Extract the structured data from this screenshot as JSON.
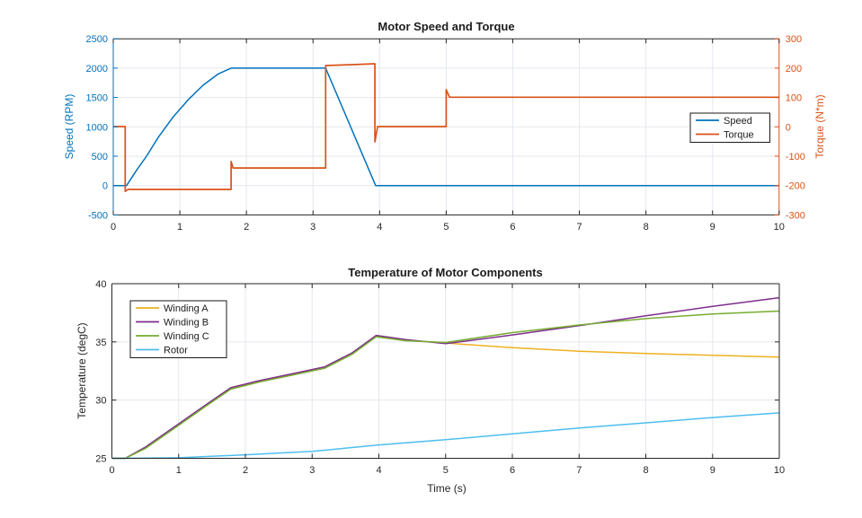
{
  "figure": {
    "background": "#ffffff"
  },
  "colors": {
    "axis_dark": "#262626",
    "grid": "#e4e7ee",
    "speed_blue": "#0072BD",
    "torque_orange": "#D95319",
    "winding_a_yellow": "#EDB120",
    "winding_b_purple": "#7E2F8E",
    "winding_c_green": "#77AC30",
    "rotor_cyan": "#4DBEEE",
    "legend_border": "#1a1a1a"
  },
  "chart_data": [
    {
      "type": "line",
      "title": "Motor Speed and Torque",
      "xlabel": "",
      "xlim": [
        0,
        10
      ],
      "xticks": [
        0,
        1,
        2,
        3,
        4,
        5,
        6,
        7,
        8,
        9,
        10
      ],
      "grid": true,
      "legend": {
        "position": "right-center",
        "entries": [
          "Speed",
          "Torque"
        ]
      },
      "left_axis": {
        "label": "Speed (RPM)",
        "color": "#0072BD",
        "lim": [
          -500,
          2500
        ],
        "ticks": [
          -500,
          0,
          500,
          1000,
          1500,
          2000,
          2500
        ]
      },
      "right_axis": {
        "label": "Torque (N*m)",
        "color": "#D95319",
        "lim": [
          -300,
          300
        ],
        "ticks": [
          -300,
          -200,
          -100,
          0,
          100,
          200,
          300
        ]
      },
      "series": [
        {
          "name": "Speed",
          "axis": "left",
          "color": "#0072BD",
          "points": [
            [
              0,
              0
            ],
            [
              0.2,
              0
            ],
            [
              0.35,
              260
            ],
            [
              0.5,
              500
            ],
            [
              0.675,
              820
            ],
            [
              0.9,
              1170
            ],
            [
              1.125,
              1460
            ],
            [
              1.35,
              1710
            ],
            [
              1.575,
              1900
            ],
            [
              1.77,
              2000
            ],
            [
              3.19,
              2000
            ],
            [
              3.94,
              0
            ],
            [
              10,
              0
            ]
          ]
        },
        {
          "name": "Torque",
          "axis": "right",
          "color": "#D95319",
          "points": [
            [
              0,
              1
            ],
            [
              0.18,
              1
            ],
            [
              0.18,
              -220
            ],
            [
              0.22,
              -213
            ],
            [
              1.77,
              -213
            ],
            [
              1.77,
              -118
            ],
            [
              1.8,
              -140
            ],
            [
              3.19,
              -140
            ],
            [
              3.19,
              209
            ],
            [
              3.6,
              212
            ],
            [
              3.93,
              215
            ],
            [
              3.93,
              -51
            ],
            [
              3.97,
              1
            ],
            [
              5,
              1
            ],
            [
              5,
              127
            ],
            [
              5.05,
              101
            ],
            [
              10,
              101
            ]
          ]
        }
      ]
    },
    {
      "type": "line",
      "title": "Temperature of Motor Components",
      "xlabel": "Time (s)",
      "xlim": [
        0,
        10
      ],
      "xticks": [
        0,
        1,
        2,
        3,
        4,
        5,
        6,
        7,
        8,
        9,
        10
      ],
      "grid": true,
      "legend": {
        "position": "top-left",
        "entries": [
          "Winding A",
          "Winding B",
          "Winding C",
          "Rotor"
        ]
      },
      "left_axis": {
        "label": "Temperature (degC)",
        "color": "#262626",
        "lim": [
          25,
          40
        ],
        "ticks": [
          25,
          30,
          35,
          40
        ]
      },
      "series": [
        {
          "name": "Winding A",
          "axis": "left",
          "color": "#EDB120",
          "points": [
            [
              0,
              25
            ],
            [
              0.2,
              25
            ],
            [
              0.5,
              25.9
            ],
            [
              1,
              27.9
            ],
            [
              1.4,
              29.5
            ],
            [
              1.78,
              31.0
            ],
            [
              2.2,
              31.6
            ],
            [
              2.7,
              32.2
            ],
            [
              3.19,
              32.8
            ],
            [
              3.6,
              34.0
            ],
            [
              3.96,
              35.45
            ],
            [
              4.4,
              35.15
            ],
            [
              5,
              34.9
            ],
            [
              6,
              34.5
            ],
            [
              7,
              34.2
            ],
            [
              8,
              34.0
            ],
            [
              9,
              33.85
            ],
            [
              10,
              33.7
            ]
          ]
        },
        {
          "name": "Winding B",
          "axis": "left",
          "color": "#7E2F8E",
          "points": [
            [
              0,
              25
            ],
            [
              0.2,
              25
            ],
            [
              0.5,
              25.96
            ],
            [
              1,
              27.96
            ],
            [
              1.4,
              29.56
            ],
            [
              1.78,
              31.06
            ],
            [
              2.2,
              31.66
            ],
            [
              2.7,
              32.26
            ],
            [
              3.19,
              32.86
            ],
            [
              3.6,
              34.06
            ],
            [
              3.96,
              35.56
            ],
            [
              4.4,
              35.2
            ],
            [
              5,
              34.85
            ],
            [
              6,
              35.6
            ],
            [
              7,
              36.4
            ],
            [
              8,
              37.25
            ],
            [
              9,
              38.05
            ],
            [
              10,
              38.8
            ]
          ]
        },
        {
          "name": "Winding C",
          "axis": "left",
          "color": "#77AC30",
          "points": [
            [
              0,
              25
            ],
            [
              0.2,
              25
            ],
            [
              0.5,
              25.84
            ],
            [
              1,
              27.84
            ],
            [
              1.4,
              29.44
            ],
            [
              1.78,
              30.94
            ],
            [
              2.2,
              31.54
            ],
            [
              2.7,
              32.14
            ],
            [
              3.19,
              32.74
            ],
            [
              3.6,
              33.94
            ],
            [
              3.96,
              35.44
            ],
            [
              4.4,
              35.1
            ],
            [
              5,
              34.95
            ],
            [
              6,
              35.8
            ],
            [
              7,
              36.45
            ],
            [
              8,
              37.0
            ],
            [
              9,
              37.4
            ],
            [
              10,
              37.65
            ]
          ]
        },
        {
          "name": "Rotor",
          "axis": "left",
          "color": "#4DBEEE",
          "points": [
            [
              0,
              25
            ],
            [
              0.5,
              25.02
            ],
            [
              1,
              25.05
            ],
            [
              2,
              25.3
            ],
            [
              3,
              25.6
            ],
            [
              3.2,
              25.7
            ],
            [
              4,
              26.15
            ],
            [
              5,
              26.6
            ],
            [
              6,
              27.1
            ],
            [
              7,
              27.6
            ],
            [
              8,
              28.05
            ],
            [
              9,
              28.5
            ],
            [
              10,
              28.9
            ]
          ]
        }
      ]
    }
  ]
}
